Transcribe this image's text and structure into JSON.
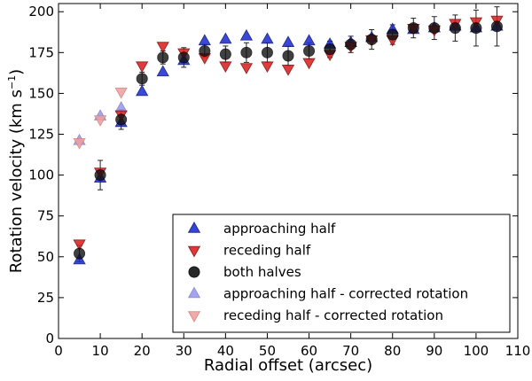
{
  "chart_data": {
    "type": "scatter",
    "title": "",
    "xlabel": "Radial offset (arcsec)",
    "ylabel_main": "Rotation velocity (km s",
    "ylabel_sup": "−1",
    "ylabel_close": ")",
    "xlim": [
      0,
      110
    ],
    "ylim": [
      0,
      205
    ],
    "xticks": [
      0,
      10,
      20,
      30,
      40,
      50,
      60,
      70,
      80,
      90,
      100,
      110
    ],
    "yticks": [
      0,
      25,
      50,
      75,
      100,
      125,
      150,
      175,
      200
    ],
    "grid": false,
    "legend_position": "lower-right",
    "series": [
      {
        "name": "approaching half - corrected rotation",
        "marker": "triangle-up",
        "color": "#9a9aee",
        "stroke": "#8888cc",
        "x": [
          5,
          10,
          15
        ],
        "y": [
          121,
          136,
          141
        ]
      },
      {
        "name": "receding half - corrected rotation",
        "marker": "triangle-down",
        "color": "#f0a0a0",
        "stroke": "#d08888",
        "x": [
          5,
          10,
          15
        ],
        "y": [
          120,
          134,
          151
        ]
      },
      {
        "name": "approaching half",
        "marker": "triangle-up",
        "color": "#1f2fd6",
        "stroke": "#101880",
        "x": [
          5,
          10,
          15,
          20,
          25,
          30,
          35,
          40,
          45,
          50,
          55,
          60,
          65,
          70,
          75,
          80,
          85,
          90,
          95,
          100,
          105
        ],
        "y": [
          48,
          98,
          132,
          151,
          163,
          170,
          182,
          183,
          185,
          183,
          181,
          182,
          180,
          181,
          184,
          189,
          189,
          190,
          191,
          190,
          191
        ]
      },
      {
        "name": "receding half",
        "marker": "triangle-down",
        "color": "#dd2222",
        "stroke": "#881111",
        "x": [
          5,
          10,
          15,
          20,
          25,
          30,
          35,
          40,
          45,
          50,
          55,
          60,
          65,
          70,
          75,
          80,
          85,
          90,
          95,
          100,
          105
        ],
        "y": [
          58,
          102,
          137,
          167,
          179,
          175,
          172,
          167,
          166,
          167,
          165,
          169,
          174,
          179,
          183,
          183,
          190,
          189,
          193,
          194,
          195
        ]
      },
      {
        "name": "both halves",
        "marker": "circle",
        "color": "#111111",
        "stroke": "#000000",
        "x": [
          5,
          10,
          15,
          20,
          25,
          30,
          35,
          40,
          45,
          50,
          55,
          60,
          65,
          70,
          75,
          80,
          85,
          90,
          95,
          100,
          105
        ],
        "y": [
          52,
          100,
          134,
          159,
          172,
          172,
          176,
          174,
          175,
          175,
          173,
          176,
          177,
          180,
          183,
          186,
          190,
          190,
          190,
          190,
          191
        ],
        "err": [
          5,
          9,
          6,
          4,
          4,
          6,
          4,
          5,
          6,
          6,
          6,
          5,
          5,
          5,
          6,
          6,
          6,
          7,
          8,
          11,
          12
        ]
      }
    ],
    "legend": [
      {
        "label": "approaching half",
        "marker": "triangle-up",
        "color": "#1f2fd6",
        "stroke": "#101880"
      },
      {
        "label": "receding half",
        "marker": "triangle-down",
        "color": "#dd2222",
        "stroke": "#881111"
      },
      {
        "label": "both halves",
        "marker": "circle",
        "color": "#111111",
        "stroke": "#000000"
      },
      {
        "label": "approaching half - corrected rotation",
        "marker": "triangle-up",
        "color": "#9a9aee",
        "stroke": "#8888cc"
      },
      {
        "label": "receding half - corrected rotation",
        "marker": "triangle-down",
        "color": "#f0a0a0",
        "stroke": "#d08888"
      }
    ]
  }
}
